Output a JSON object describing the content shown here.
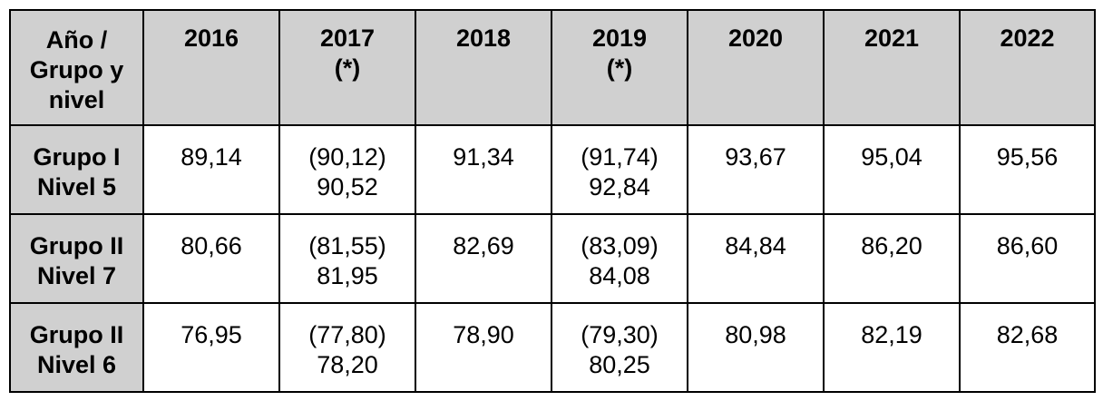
{
  "table": {
    "header": {
      "corner": [
        "Año /",
        "Grupo y",
        "nivel"
      ],
      "years": [
        {
          "year": "2016",
          "note": ""
        },
        {
          "year": "2017",
          "note": "(*)"
        },
        {
          "year": "2018",
          "note": ""
        },
        {
          "year": "2019",
          "note": "(*)"
        },
        {
          "year": "2020",
          "note": ""
        },
        {
          "year": "2021",
          "note": ""
        },
        {
          "year": "2022",
          "note": ""
        }
      ]
    },
    "rows": [
      {
        "label": [
          "Grupo I",
          "Nivel 5"
        ],
        "values": [
          [
            "89,14"
          ],
          [
            "(90,12)",
            "90,52"
          ],
          [
            "91,34"
          ],
          [
            "(91,74)",
            "92,84"
          ],
          [
            "93,67"
          ],
          [
            "95,04"
          ],
          [
            "95,56"
          ]
        ]
      },
      {
        "label": [
          "Grupo II",
          "Nivel 7"
        ],
        "values": [
          [
            "80,66"
          ],
          [
            "(81,55)",
            "81,95"
          ],
          [
            "82,69"
          ],
          [
            "(83,09)",
            "84,08"
          ],
          [
            "84,84"
          ],
          [
            "86,20"
          ],
          [
            "86,60"
          ]
        ]
      },
      {
        "label": [
          "Grupo II",
          "Nivel 6"
        ],
        "values": [
          [
            "76,95"
          ],
          [
            "(77,80)",
            "78,20"
          ],
          [
            "78,90"
          ],
          [
            "(79,30)",
            "80,25"
          ],
          [
            "80,98"
          ],
          [
            "82,19"
          ],
          [
            "82,68"
          ]
        ]
      }
    ]
  }
}
